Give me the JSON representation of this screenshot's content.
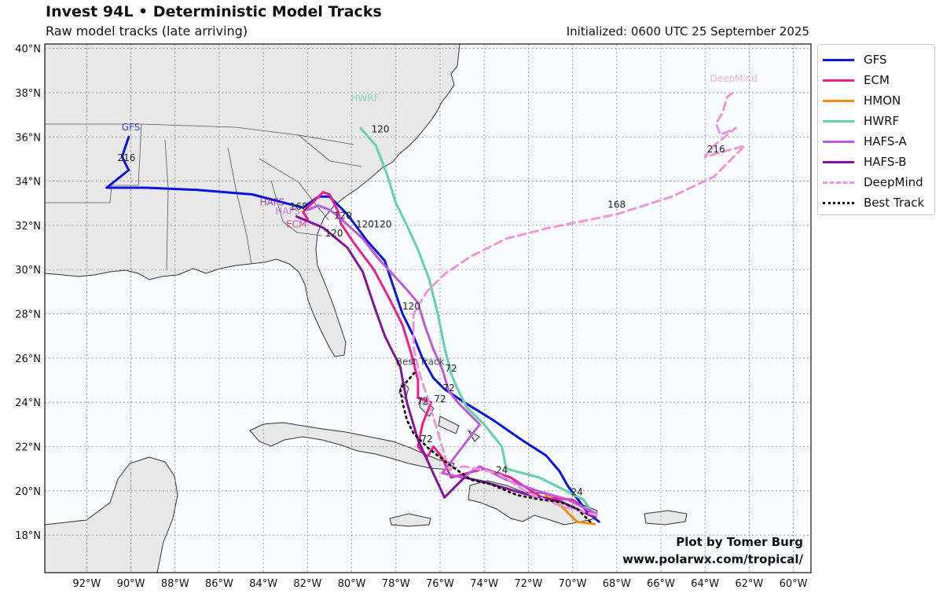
{
  "header": {
    "title": "Invest 94L • Deterministic Model Tracks",
    "subtitle": "Raw model tracks (late arriving)",
    "initialized": "Initialized: 0600 UTC 25 September 2025"
  },
  "axes": {
    "lat_ticks": [
      "40°N",
      "38°N",
      "36°N",
      "34°N",
      "32°N",
      "30°N",
      "28°N",
      "26°N",
      "24°N",
      "22°N",
      "20°N",
      "18°N"
    ],
    "lon_ticks": [
      "92°W",
      "90°W",
      "88°W",
      "86°W",
      "84°W",
      "82°W",
      "80°W",
      "78°W",
      "76°W",
      "74°W",
      "72°W",
      "70°W",
      "68°W",
      "66°W",
      "64°W",
      "62°W",
      "60°W"
    ],
    "lat_range": [
      16.3,
      40.2
    ],
    "lon_range": [
      -93.9,
      -59.2
    ]
  },
  "legend": [
    {
      "name": "GFS",
      "color": "#0a14dc",
      "style": "solid"
    },
    {
      "name": "ECM",
      "color": "#ee1e8c",
      "style": "solid"
    },
    {
      "name": "HMON",
      "color": "#f08c14",
      "style": "solid"
    },
    {
      "name": "HWRF",
      "color": "#64d2aa",
      "style": "solid"
    },
    {
      "name": "HAFS-A",
      "color": "#c05adc",
      "style": "solid"
    },
    {
      "name": "HAFS-B",
      "color": "#8214a0",
      "style": "solid"
    },
    {
      "name": "DeepMind",
      "color": "#ee96dc",
      "style": "dashed"
    },
    {
      "name": "Best Track",
      "color": "#111111",
      "style": "dotted"
    }
  ],
  "tracks": {
    "GFS": {
      "label": "GFS",
      "points": [
        [
          -68.8,
          18.6
        ],
        [
          -69.3,
          19.0
        ],
        [
          -70.2,
          20.2
        ],
        [
          -70.6,
          20.9
        ],
        [
          -71.2,
          21.6
        ],
        [
          -72.3,
          22.3
        ],
        [
          -73.6,
          23.2
        ],
        [
          -74.9,
          24.0
        ],
        [
          -75.8,
          24.6
        ],
        [
          -76.3,
          25.1
        ],
        [
          -76.8,
          26.0
        ],
        [
          -77.2,
          27.0
        ],
        [
          -77.7,
          28.0
        ],
        [
          -78.1,
          29.2
        ],
        [
          -78.5,
          30.4
        ],
        [
          -79.3,
          31.3
        ],
        [
          -80.2,
          32.5
        ],
        [
          -81.0,
          33.3
        ],
        [
          -81.5,
          33.3
        ],
        [
          -82.2,
          32.8
        ],
        [
          -84.5,
          33.4
        ],
        [
          -87.0,
          33.6
        ],
        [
          -89.3,
          33.7
        ],
        [
          -91.1,
          33.7
        ],
        [
          -90.1,
          34.5
        ],
        [
          -90.4,
          35.1
        ],
        [
          -90.1,
          36.0
        ]
      ],
      "time_labels": [
        {
          "t": "216",
          "lon": -90.2,
          "lat": 34.9
        },
        {
          "t": "168",
          "lon": -82.4,
          "lat": 32.7
        },
        {
          "t": "120",
          "lon": -78.6,
          "lat": 31.9
        },
        {
          "t": "72",
          "lon": -75.6,
          "lat": 24.5
        }
      ]
    },
    "ECM": {
      "label": "ECM",
      "points": [
        [
          -69.0,
          18.9
        ],
        [
          -70.0,
          19.6
        ],
        [
          -71.4,
          19.7
        ],
        [
          -72.8,
          20.6
        ],
        [
          -74.0,
          21.0
        ],
        [
          -75.5,
          20.6
        ],
        [
          -75.9,
          21.5
        ],
        [
          -76.3,
          22.0
        ],
        [
          -76.6,
          21.5
        ],
        [
          -77.0,
          22.0
        ],
        [
          -76.8,
          23.0
        ],
        [
          -76.4,
          24.0
        ],
        [
          -77.0,
          24.2
        ],
        [
          -77.0,
          25.0
        ],
        [
          -77.3,
          26.2
        ],
        [
          -77.7,
          27.5
        ],
        [
          -78.3,
          28.7
        ],
        [
          -79.0,
          30.0
        ],
        [
          -79.9,
          31.2
        ],
        [
          -80.5,
          32.1
        ],
        [
          -80.6,
          32.6
        ],
        [
          -81.0,
          33.4
        ],
        [
          -81.3,
          33.5
        ],
        [
          -82.2,
          32.6
        ],
        [
          -82.0,
          32.3
        ]
      ],
      "time_labels": [
        {
          "t": "120",
          "lon": -79.4,
          "lat": 31.9
        },
        {
          "t": "72",
          "lon": -76.8,
          "lat": 23.9
        },
        {
          "t": "72",
          "lon": -76.6,
          "lat": 22.2
        }
      ]
    },
    "HMON": {
      "label": "HMON",
      "points": [
        [
          -69.0,
          18.5
        ],
        [
          -69.8,
          18.6
        ],
        [
          -70.5,
          19.3
        ],
        [
          -71.2,
          19.8
        ]
      ],
      "time_labels": []
    },
    "HWRF": {
      "label": "HWRF",
      "points": [
        [
          -69.0,
          18.9
        ],
        [
          -69.5,
          19.6
        ],
        [
          -70.5,
          20.1
        ],
        [
          -71.5,
          20.6
        ],
        [
          -73.0,
          21.0
        ],
        [
          -73.2,
          22.0
        ],
        [
          -74.0,
          23.0
        ],
        [
          -74.8,
          23.8
        ],
        [
          -75.2,
          24.6
        ],
        [
          -75.5,
          25.3
        ],
        [
          -75.8,
          26.5
        ],
        [
          -76.1,
          28.0
        ],
        [
          -76.5,
          29.6
        ],
        [
          -77.0,
          30.9
        ],
        [
          -77.5,
          32.0
        ],
        [
          -78.0,
          33.0
        ],
        [
          -78.4,
          34.3
        ],
        [
          -78.9,
          35.6
        ],
        [
          -79.6,
          36.4
        ]
      ],
      "time_labels": [
        {
          "t": "120",
          "lon": -78.7,
          "lat": 36.2
        },
        {
          "t": "72",
          "lon": -75.5,
          "lat": 25.4
        }
      ]
    },
    "HAFS-A": {
      "label": "HAFS-A",
      "points": [
        [
          -69.0,
          19.0
        ],
        [
          -70.2,
          19.6
        ],
        [
          -71.6,
          20.0
        ],
        [
          -73.0,
          20.5
        ],
        [
          -74.2,
          21.1
        ],
        [
          -75.0,
          20.6
        ],
        [
          -75.9,
          20.8
        ],
        [
          -74.2,
          23.0
        ],
        [
          -75.2,
          24.0
        ],
        [
          -75.6,
          24.5
        ],
        [
          -75.9,
          25.5
        ],
        [
          -76.3,
          26.4
        ],
        [
          -76.7,
          27.5
        ],
        [
          -77.0,
          28.5
        ],
        [
          -77.6,
          29.2
        ],
        [
          -78.8,
          30.5
        ],
        [
          -79.5,
          31.4
        ],
        [
          -80.6,
          32.4
        ],
        [
          -81.0,
          32.7
        ],
        [
          -81.5,
          32.9
        ],
        [
          -82.0,
          32.7
        ]
      ],
      "time_labels": [
        {
          "t": "120",
          "lon": -80.4,
          "lat": 32.3
        },
        {
          "t": "120",
          "lon": -77.3,
          "lat": 28.2
        },
        {
          "t": "72",
          "lon": -76.0,
          "lat": 24.0
        }
      ]
    },
    "HAFS-B": {
      "label": "HAFS-B",
      "points": [
        [
          -69.0,
          18.8
        ],
        [
          -70.5,
          19.5
        ],
        [
          -72.3,
          19.9
        ],
        [
          -74.0,
          20.4
        ],
        [
          -74.9,
          20.6
        ],
        [
          -75.8,
          19.7
        ],
        [
          -76.4,
          21.0
        ],
        [
          -77.0,
          22.3
        ],
        [
          -77.5,
          24.0
        ],
        [
          -77.8,
          25.6
        ],
        [
          -78.5,
          27.0
        ],
        [
          -79.0,
          28.4
        ],
        [
          -79.5,
          29.9
        ],
        [
          -80.2,
          31.0
        ],
        [
          -81.3,
          31.9
        ],
        [
          -82.5,
          32.4
        ],
        [
          -82.0,
          32.2
        ]
      ],
      "time_labels": [
        {
          "t": "120",
          "lon": -80.8,
          "lat": 31.5
        },
        {
          "t": "24",
          "lon": -73.2,
          "lat": 20.8
        },
        {
          "t": "24",
          "lon": -69.8,
          "lat": 19.8
        }
      ]
    },
    "DeepMind": {
      "label": "DeepMind",
      "points": [
        [
          -68.9,
          18.9
        ],
        [
          -70.5,
          19.3
        ],
        [
          -72.0,
          19.9
        ],
        [
          -73.4,
          20.8
        ],
        [
          -74.9,
          21.1
        ],
        [
          -75.6,
          21.0
        ],
        [
          -76.0,
          22.3
        ],
        [
          -76.5,
          24.0
        ],
        [
          -76.9,
          25.2
        ],
        [
          -77.2,
          26.5
        ],
        [
          -77.2,
          28.0
        ],
        [
          -76.6,
          29.0
        ],
        [
          -75.8,
          29.8
        ],
        [
          -74.6,
          30.6
        ],
        [
          -73.0,
          31.4
        ],
        [
          -71.0,
          31.9
        ],
        [
          -68.0,
          32.5
        ],
        [
          -65.5,
          33.3
        ],
        [
          -63.6,
          34.2
        ],
        [
          -62.2,
          35.6
        ],
        [
          -64.0,
          35.1
        ],
        [
          -63.6,
          35.6
        ],
        [
          -62.6,
          36.4
        ],
        [
          -63.3,
          36.1
        ],
        [
          -63.5,
          36.6
        ],
        [
          -63.2,
          37.1
        ],
        [
          -63.0,
          37.8
        ],
        [
          -62.6,
          38.1
        ]
      ],
      "time_labels": [
        {
          "t": "168",
          "lon": -68.0,
          "lat": 32.8
        },
        {
          "t": "216",
          "lon": -63.5,
          "lat": 35.3
        }
      ]
    },
    "Best Track": {
      "label": "Best Track",
      "points": [
        [
          -69.2,
          18.6
        ],
        [
          -69.8,
          19.2
        ],
        [
          -70.6,
          19.5
        ],
        [
          -71.4,
          19.6
        ],
        [
          -72.5,
          19.8
        ],
        [
          -73.7,
          20.3
        ],
        [
          -74.6,
          20.5
        ],
        [
          -75.6,
          21.2
        ],
        [
          -76.5,
          21.9
        ],
        [
          -77.2,
          22.6
        ],
        [
          -77.5,
          23.2
        ],
        [
          -77.7,
          24.0
        ],
        [
          -77.8,
          24.6
        ],
        [
          -77.1,
          25.4
        ]
      ],
      "time_labels": []
    }
  },
  "track_labels": [
    {
      "t": "GFS",
      "model": "GFS",
      "lon": -90.0,
      "lat": 36.3
    },
    {
      "t": "HWRF",
      "model": "HWRF",
      "lon": -79.4,
      "lat": 37.6
    },
    {
      "t": "DeepMind",
      "model": "DeepMind",
      "lon": -62.7,
      "lat": 38.5
    },
    {
      "t": "Best Track",
      "model": "Best Track",
      "lon": -76.9,
      "lat": 25.7
    },
    {
      "t": "HAFS",
      "model": "HAFS-A",
      "lon": -82.9,
      "lat": 32.5
    },
    {
      "t": "HAFS",
      "model": "HAFS-B",
      "lon": -83.6,
      "lat": 32.9
    },
    {
      "t": "ECM",
      "model": "ECM",
      "lon": -82.5,
      "lat": 31.9
    }
  ],
  "credit": {
    "line1": "Plot by Tomer Burg",
    "line2": "www.polarwx.com/tropical/"
  }
}
